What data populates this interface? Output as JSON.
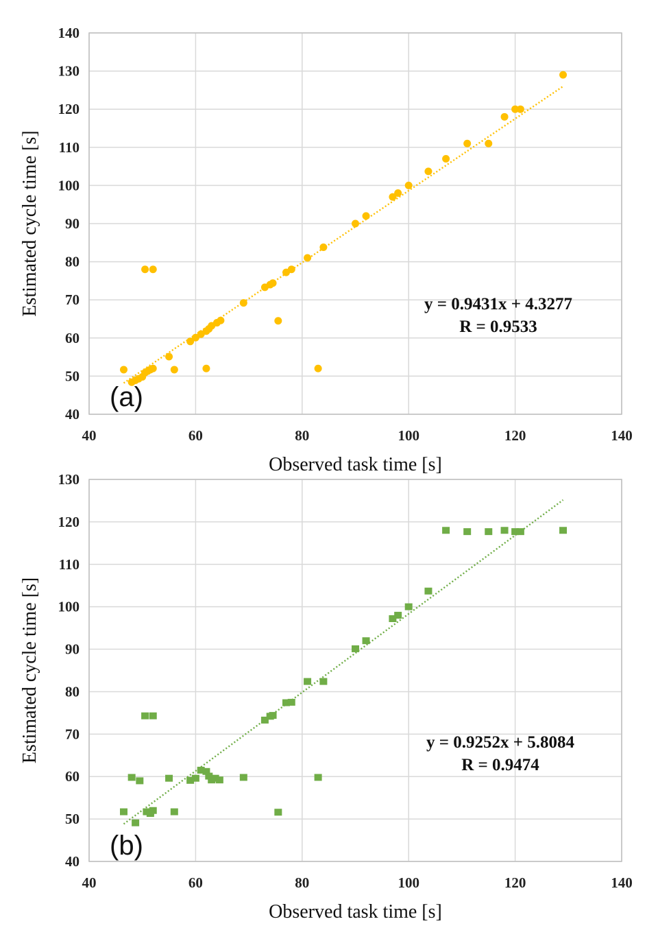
{
  "chart_data": [
    {
      "type": "scatter",
      "panel_label": "(a)",
      "xlabel": "Observed task time [s]",
      "ylabel": "Estimated cycle time [s]",
      "xlim": [
        40,
        140
      ],
      "ylim": [
        40,
        140
      ],
      "xticks": [
        40,
        60,
        80,
        100,
        120,
        140
      ],
      "yticks": [
        40,
        50,
        60,
        70,
        80,
        90,
        100,
        110,
        120,
        130,
        140
      ],
      "grid": true,
      "marker": "circle",
      "color": "#FFC000",
      "trendline": {
        "slope": 0.9431,
        "intercept": 4.3277,
        "x_range": [
          46.5,
          129
        ]
      },
      "annotation": [
        "y = 0.9431x + 4.3277",
        "R = 0.9533"
      ],
      "series": [
        {
          "x": [
            46.5,
            48,
            48.7,
            49.3,
            50,
            50.5,
            51,
            51.5,
            52,
            55,
            56,
            59,
            60,
            61,
            62,
            62.5,
            63,
            64,
            64.7,
            69,
            73,
            74,
            74.5,
            77,
            78,
            81,
            84,
            90,
            92,
            97,
            98,
            100,
            103.7,
            107,
            111,
            115,
            118,
            120,
            121,
            129,
            50.5,
            52,
            62,
            75.5,
            83
          ],
          "y": [
            51.7,
            48.4,
            48.9,
            49.3,
            49.8,
            50.9,
            51.3,
            51.7,
            52,
            55.1,
            51.7,
            59.1,
            60.1,
            61,
            61.8,
            62.4,
            63.2,
            64,
            64.6,
            69.2,
            73.3,
            74,
            74.4,
            77.2,
            78,
            81,
            83.8,
            90,
            92,
            97,
            98,
            100,
            103.7,
            107,
            111,
            111,
            118,
            120,
            120,
            129,
            78,
            78,
            52,
            64.5,
            52
          ]
        }
      ]
    },
    {
      "type": "scatter",
      "panel_label": "(b)",
      "xlabel": "Observed task time [s]",
      "ylabel": "Estimated cycle time [s]",
      "xlim": [
        40,
        140
      ],
      "ylim": [
        40,
        130
      ],
      "xticks": [
        40,
        60,
        80,
        100,
        120,
        140
      ],
      "yticks": [
        40,
        50,
        60,
        70,
        80,
        90,
        100,
        110,
        120,
        130
      ],
      "grid": true,
      "marker": "square",
      "color": "#70AD47",
      "trendline": {
        "slope": 0.9252,
        "intercept": 5.8084,
        "x_range": [
          46.5,
          129
        ]
      },
      "annotation": [
        "y = 0.9252x + 5.8084",
        "R = 0.9474"
      ],
      "series": [
        {
          "x": [
            46.5,
            48,
            48.7,
            49.5,
            50.8,
            51.5,
            52,
            55,
            56,
            59,
            60,
            61,
            62,
            62.5,
            63,
            63.7,
            64.5,
            69,
            73,
            74,
            74.5,
            77,
            78,
            81,
            84,
            90,
            92,
            97,
            98,
            100,
            103.7,
            107,
            111,
            115,
            118,
            120,
            121,
            129,
            50.5,
            52,
            75.5,
            83,
            51.5
          ],
          "y": [
            51.7,
            59.8,
            49.1,
            59,
            51.7,
            51.7,
            52,
            59.6,
            51.7,
            59.1,
            59.6,
            61.5,
            61.2,
            60.1,
            59.2,
            59.6,
            59.2,
            59.8,
            73.3,
            74.2,
            74.4,
            77.4,
            77.5,
            82.4,
            82.4,
            90.1,
            92,
            97.2,
            98,
            100,
            103.7,
            118,
            117.7,
            117.7,
            118,
            117.7,
            117.7,
            118,
            74.3,
            74.3,
            51.6,
            59.8,
            51.3
          ]
        }
      ]
    }
  ]
}
